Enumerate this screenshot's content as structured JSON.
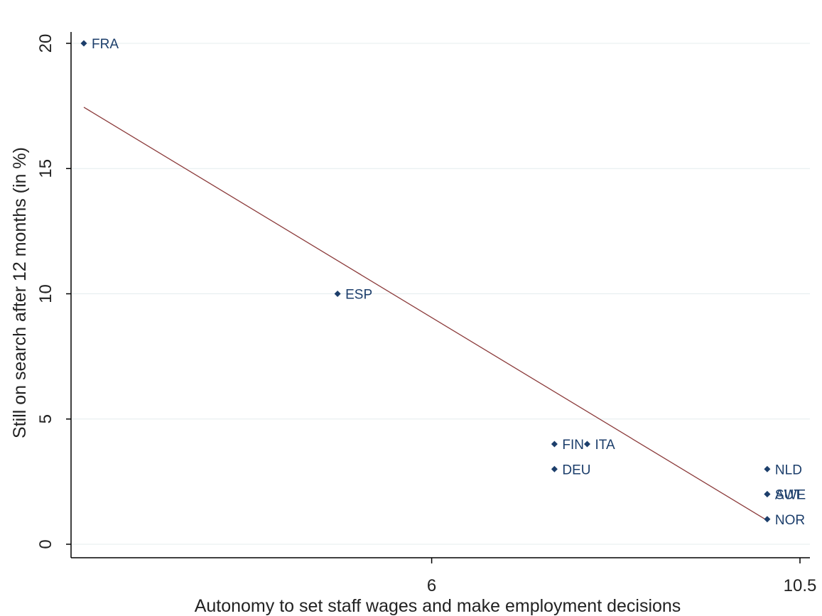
{
  "chart_data": {
    "type": "scatter",
    "title": "",
    "xlabel": "Autonomy to set staff wages and make employment decisions",
    "ylabel": "Still on search after 12 months (in %)",
    "xlim": [
      1.6,
      10.6
    ],
    "ylim": [
      -0.6,
      20.6
    ],
    "xticks": [
      6,
      10.5
    ],
    "xtick_labels": [
      "6",
      "10.5"
    ],
    "yticks": [
      0,
      5,
      10,
      15,
      20
    ],
    "ytick_labels": [
      "0",
      "5",
      "10",
      "15",
      "20"
    ],
    "grid": "horizontal",
    "legend": "none",
    "points": [
      {
        "label": "FRA",
        "x": 1.75,
        "y": 20
      },
      {
        "label": "ESP",
        "x": 4.85,
        "y": 10
      },
      {
        "label": "FIN",
        "x": 7.5,
        "y": 4
      },
      {
        "label": "ITA",
        "x": 7.9,
        "y": 4
      },
      {
        "label": "DEU",
        "x": 7.5,
        "y": 3
      },
      {
        "label": "NLD",
        "x": 10.1,
        "y": 3
      },
      {
        "label": "SWE",
        "x": 10.1,
        "y": 2
      },
      {
        "label": "AUT",
        "x": 10.1,
        "y": 2
      },
      {
        "label": "NOR",
        "x": 10.1,
        "y": 1
      }
    ],
    "fit_line": {
      "x": [
        1.75,
        10.1
      ],
      "y": [
        17.45,
        0.95
      ]
    },
    "colors": {
      "marker": "#1c3e6b",
      "label": "#1c3e6b",
      "fit_line": "#8b3a3a",
      "grid": "#e4ecee",
      "axis": "#000000"
    }
  }
}
